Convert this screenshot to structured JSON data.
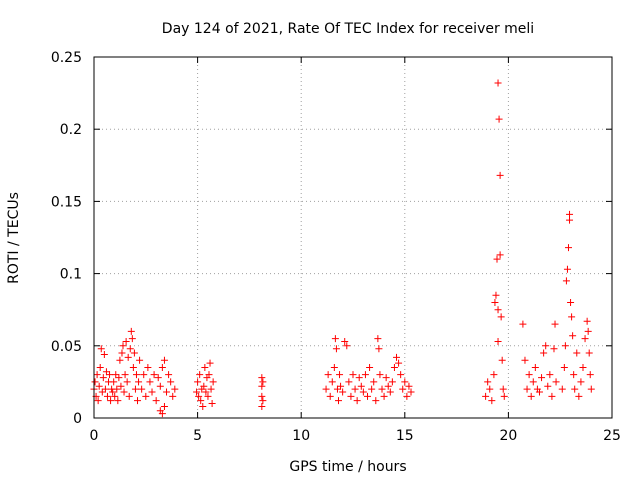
{
  "chart_data": {
    "type": "scatter",
    "title": "Day 124 of 2021, Rate Of TEC Index for receiver meli",
    "xlabel": "GPS time / hours",
    "ylabel": "ROTI / TECUs",
    "xlim": [
      0,
      25
    ],
    "ylim": [
      0,
      0.25
    ],
    "xticks": [
      0,
      5,
      10,
      15,
      20,
      25
    ],
    "xtick_labels": [
      "0",
      "5",
      "10",
      "15",
      "20",
      "25"
    ],
    "yticks": [
      0,
      0.05,
      0.1,
      0.15,
      0.2,
      0.25
    ],
    "ytick_labels": [
      "0",
      "0.05",
      "0.1",
      "0.15",
      "0.2",
      "0.25"
    ],
    "grid": true,
    "marker": "+",
    "color": "#ff0000",
    "series": [
      {
        "points": [
          [
            0.0,
            0.02
          ],
          [
            0.05,
            0.025
          ],
          [
            0.1,
            0.015
          ],
          [
            0.15,
            0.03
          ],
          [
            0.2,
            0.012
          ],
          [
            0.25,
            0.022
          ],
          [
            0.3,
            0.035
          ],
          [
            0.35,
            0.048
          ],
          [
            0.4,
            0.018
          ],
          [
            0.45,
            0.028
          ],
          [
            0.5,
            0.044
          ],
          [
            0.55,
            0.02
          ],
          [
            0.6,
            0.032
          ],
          [
            0.65,
            0.015
          ],
          [
            0.7,
            0.025
          ],
          [
            0.75,
            0.03
          ],
          [
            0.8,
            0.012
          ],
          [
            0.85,
            0.02
          ],
          [
            0.9,
            0.018
          ],
          [
            0.95,
            0.025
          ],
          [
            1.0,
            0.015
          ],
          [
            1.05,
            0.03
          ],
          [
            1.1,
            0.02
          ],
          [
            1.15,
            0.012
          ],
          [
            1.2,
            0.028
          ],
          [
            1.25,
            0.04
          ],
          [
            1.3,
            0.022
          ],
          [
            1.35,
            0.045
          ],
          [
            1.4,
            0.05
          ],
          [
            1.45,
            0.018
          ],
          [
            1.5,
            0.03
          ],
          [
            1.55,
            0.053
          ],
          [
            1.6,
            0.025
          ],
          [
            1.65,
            0.042
          ],
          [
            1.7,
            0.015
          ],
          [
            1.75,
            0.048
          ],
          [
            1.8,
            0.06
          ],
          [
            1.85,
            0.055
          ],
          [
            1.9,
            0.035
          ],
          [
            1.95,
            0.045
          ],
          [
            2.0,
            0.02
          ],
          [
            2.05,
            0.03
          ],
          [
            2.1,
            0.012
          ],
          [
            2.15,
            0.025
          ],
          [
            2.2,
            0.04
          ],
          [
            2.3,
            0.02
          ],
          [
            2.4,
            0.03
          ],
          [
            2.5,
            0.015
          ],
          [
            2.6,
            0.035
          ],
          [
            2.7,
            0.025
          ],
          [
            2.8,
            0.018
          ],
          [
            2.9,
            0.03
          ],
          [
            3.0,
            0.012
          ],
          [
            3.1,
            0.028
          ],
          [
            3.2,
            0.022
          ],
          [
            3.3,
            0.035
          ],
          [
            3.4,
            0.04
          ],
          [
            3.5,
            0.018
          ],
          [
            3.6,
            0.03
          ],
          [
            3.7,
            0.025
          ],
          [
            3.8,
            0.015
          ],
          [
            3.9,
            0.02
          ],
          [
            3.2,
            0.005
          ],
          [
            3.3,
            0.003
          ],
          [
            3.4,
            0.008
          ],
          [
            4.95,
            0.018
          ],
          [
            5.0,
            0.025
          ],
          [
            5.05,
            0.015
          ],
          [
            5.1,
            0.03
          ],
          [
            5.15,
            0.012
          ],
          [
            5.2,
            0.02
          ],
          [
            5.25,
            0.008
          ],
          [
            5.3,
            0.022
          ],
          [
            5.35,
            0.035
          ],
          [
            5.4,
            0.018
          ],
          [
            5.45,
            0.028
          ],
          [
            5.5,
            0.015
          ],
          [
            5.55,
            0.03
          ],
          [
            5.6,
            0.038
          ],
          [
            5.65,
            0.02
          ],
          [
            5.7,
            0.01
          ],
          [
            5.75,
            0.025
          ],
          [
            8.1,
            0.028
          ],
          [
            8.1,
            0.022
          ],
          [
            8.1,
            0.015
          ],
          [
            8.1,
            0.008
          ],
          [
            8.15,
            0.025
          ],
          [
            8.15,
            0.012
          ],
          [
            11.2,
            0.02
          ],
          [
            11.3,
            0.03
          ],
          [
            11.4,
            0.015
          ],
          [
            11.5,
            0.025
          ],
          [
            11.6,
            0.035
          ],
          [
            11.65,
            0.055
          ],
          [
            11.7,
            0.048
          ],
          [
            11.75,
            0.02
          ],
          [
            11.8,
            0.012
          ],
          [
            11.85,
            0.03
          ],
          [
            11.9,
            0.022
          ],
          [
            12.0,
            0.018
          ],
          [
            12.1,
            0.053
          ],
          [
            12.2,
            0.05
          ],
          [
            12.3,
            0.025
          ],
          [
            12.4,
            0.015
          ],
          [
            12.5,
            0.03
          ],
          [
            12.6,
            0.02
          ],
          [
            12.7,
            0.012
          ],
          [
            12.8,
            0.028
          ],
          [
            12.9,
            0.022
          ],
          [
            13.0,
            0.018
          ],
          [
            13.1,
            0.03
          ],
          [
            13.2,
            0.015
          ],
          [
            13.3,
            0.035
          ],
          [
            13.4,
            0.02
          ],
          [
            13.5,
            0.025
          ],
          [
            13.6,
            0.012
          ],
          [
            13.7,
            0.055
          ],
          [
            13.75,
            0.048
          ],
          [
            13.8,
            0.03
          ],
          [
            13.9,
            0.02
          ],
          [
            14.0,
            0.015
          ],
          [
            14.1,
            0.028
          ],
          [
            14.2,
            0.022
          ],
          [
            14.3,
            0.018
          ],
          [
            14.4,
            0.025
          ],
          [
            14.5,
            0.035
          ],
          [
            14.6,
            0.042
          ],
          [
            14.7,
            0.038
          ],
          [
            14.8,
            0.03
          ],
          [
            14.9,
            0.02
          ],
          [
            15.0,
            0.025
          ],
          [
            15.1,
            0.015
          ],
          [
            15.2,
            0.022
          ],
          [
            15.3,
            0.018
          ],
          [
            18.9,
            0.015
          ],
          [
            19.0,
            0.025
          ],
          [
            19.1,
            0.02
          ],
          [
            19.2,
            0.012
          ],
          [
            19.3,
            0.03
          ],
          [
            19.35,
            0.08
          ],
          [
            19.4,
            0.085
          ],
          [
            19.45,
            0.11
          ],
          [
            19.5,
            0.075
          ],
          [
            19.5,
            0.232
          ],
          [
            19.55,
            0.207
          ],
          [
            19.6,
            0.168
          ],
          [
            19.6,
            0.113
          ],
          [
            19.65,
            0.07
          ],
          [
            19.7,
            0.04
          ],
          [
            19.75,
            0.02
          ],
          [
            19.8,
            0.015
          ],
          [
            19.5,
            0.053
          ],
          [
            20.7,
            0.065
          ],
          [
            20.8,
            0.04
          ],
          [
            20.9,
            0.02
          ],
          [
            21.0,
            0.03
          ],
          [
            21.1,
            0.015
          ],
          [
            21.2,
            0.025
          ],
          [
            21.3,
            0.035
          ],
          [
            21.4,
            0.02
          ],
          [
            21.5,
            0.018
          ],
          [
            21.6,
            0.028
          ],
          [
            21.7,
            0.045
          ],
          [
            21.8,
            0.05
          ],
          [
            21.9,
            0.022
          ],
          [
            22.0,
            0.03
          ],
          [
            22.1,
            0.015
          ],
          [
            22.2,
            0.048
          ],
          [
            22.25,
            0.065
          ],
          [
            22.3,
            0.025
          ],
          [
            22.6,
            0.02
          ],
          [
            22.7,
            0.035
          ],
          [
            22.75,
            0.05
          ],
          [
            22.8,
            0.095
          ],
          [
            22.85,
            0.103
          ],
          [
            22.9,
            0.118
          ],
          [
            22.95,
            0.137
          ],
          [
            22.95,
            0.141
          ],
          [
            23.0,
            0.08
          ],
          [
            23.05,
            0.07
          ],
          [
            23.1,
            0.057
          ],
          [
            23.15,
            0.03
          ],
          [
            23.2,
            0.02
          ],
          [
            23.3,
            0.045
          ],
          [
            23.4,
            0.015
          ],
          [
            23.5,
            0.025
          ],
          [
            23.6,
            0.035
          ],
          [
            23.7,
            0.055
          ],
          [
            23.8,
            0.067
          ],
          [
            23.85,
            0.06
          ],
          [
            23.9,
            0.045
          ],
          [
            23.95,
            0.03
          ],
          [
            24.0,
            0.02
          ]
        ]
      }
    ]
  }
}
